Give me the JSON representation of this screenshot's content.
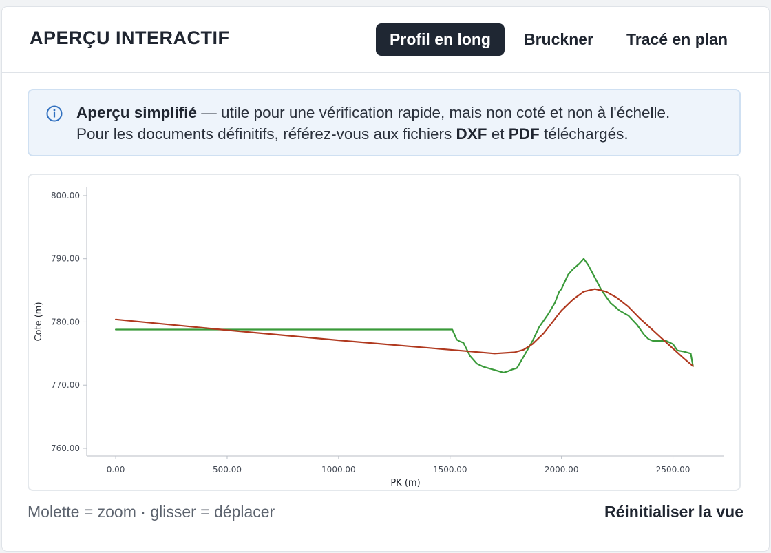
{
  "header": {
    "title": "APERÇU INTERACTIF",
    "tabs": [
      {
        "label": "Profil en long",
        "active": true
      },
      {
        "label": "Bruckner",
        "active": false
      },
      {
        "label": "Tracé en plan",
        "active": false
      }
    ]
  },
  "info": {
    "icon": "info-icon",
    "bold_lead": "Aperçu simplifié",
    "text_1": " — utile pour une vérification rapide, mais non coté et non à l'échelle.",
    "text_2": "Pour les documents définitifs, référez-vous aux fichiers ",
    "bold_dxf": "DXF",
    "text_3": " et ",
    "bold_pdf": "PDF",
    "text_4": " téléchargés."
  },
  "chart_data": {
    "type": "line",
    "xlabel": "PK (m)",
    "ylabel": "Cote (m)",
    "xlim": [
      -130,
      2730
    ],
    "ylim": [
      758.8,
      801.3
    ],
    "x_ticks": [
      "0.00",
      "500.00",
      "1000.00",
      "1500.00",
      "2000.00",
      "2500.00"
    ],
    "y_ticks": [
      "760.00",
      "770.00",
      "780.00",
      "790.00",
      "800.00"
    ],
    "series": [
      {
        "color": "#3a9a3a",
        "x": [
          0,
          500,
          1000,
          1510,
          1530,
          1545,
          1560,
          1590,
          1620,
          1650,
          1700,
          1740,
          1760,
          1780,
          1800,
          1830,
          1870,
          1900,
          1940,
          1970,
          1990,
          2000,
          2010,
          2030,
          2050,
          2080,
          2100,
          2120,
          2150,
          2180,
          2220,
          2260,
          2300,
          2340,
          2370,
          2390,
          2410,
          2440,
          2470,
          2500,
          2520,
          2550,
          2580,
          2590
        ],
        "values": [
          778.8,
          778.8,
          778.8,
          778.8,
          777.2,
          776.9,
          776.7,
          774.6,
          773.4,
          772.9,
          772.4,
          772.0,
          772.2,
          772.5,
          772.7,
          774.5,
          777.0,
          779.2,
          781.2,
          783.0,
          784.8,
          785.2,
          786.0,
          787.5,
          788.3,
          789.2,
          790.0,
          789.0,
          787.0,
          785.0,
          783.0,
          781.8,
          781.0,
          779.5,
          778.0,
          777.3,
          777.0,
          777.0,
          777.0,
          776.5,
          775.5,
          775.3,
          775.0,
          773.0
        ]
      },
      {
        "color": "#b0391f",
        "x": [
          0,
          500,
          1000,
          1500,
          1700,
          1790,
          1830,
          1870,
          1920,
          1960,
          2000,
          2050,
          2100,
          2150,
          2200,
          2250,
          2300,
          2350,
          2400,
          2450,
          2500,
          2550,
          2590
        ],
        "values": [
          780.4,
          778.7,
          777.1,
          775.6,
          775.0,
          775.2,
          775.6,
          776.5,
          778.2,
          780.0,
          781.8,
          783.5,
          784.8,
          785.2,
          784.8,
          783.8,
          782.4,
          780.6,
          779.0,
          777.4,
          775.8,
          774.2,
          773.0
        ]
      }
    ]
  },
  "footer": {
    "hint": "Molette = zoom · glisser = déplacer",
    "reset_label": "Réinitialiser la vue"
  }
}
